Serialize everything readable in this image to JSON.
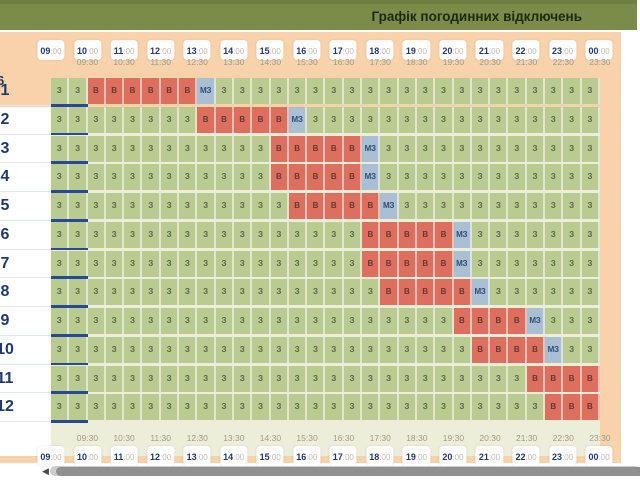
{
  "title": "Графік погодинних відключень",
  "header_fragment": "6",
  "now_badge": "···",
  "time_axis": {
    "hours": [
      "09:00",
      "10:00",
      "11:00",
      "12:00",
      "13:00",
      "14:00",
      "15:00",
      "16:00",
      "17:00",
      "18:00",
      "19:00",
      "20:00",
      "21:00",
      "22:00",
      "23:00",
      "00:00"
    ],
    "half_hours": [
      "09:30",
      "10:30",
      "11:30",
      "12:30",
      "13:30",
      "14:30",
      "15:30",
      "16:30",
      "17:30",
      "18:30",
      "19:30",
      "20:30",
      "21:30",
      "22:30",
      "23:30"
    ]
  },
  "symbols": {
    "Z": "З",
    "V": "В",
    "M": "МЗ"
  },
  "queues": [
    {
      "label": "1",
      "cells": "ZZVVVVVVMZZZZZZZZZZZZZZZZZZZZZ"
    },
    {
      "label": "2",
      "cells": "ZZZZZZZZVVVVVMZZZZZZZZZZZZZZZZ"
    },
    {
      "label": "3",
      "cells": "ZZZZZZZZZZZZVVVVVMZZZZZZZZZZZZ"
    },
    {
      "label": "4",
      "cells": "ZZZZZZZZZZZZVVVVVMZZZZZZZZZZZZ"
    },
    {
      "label": "5",
      "cells": "ZZZZZZZZZZZZZVVVVVMZZZZZZZZZZZ"
    },
    {
      "label": "6",
      "cells": "ZZZZZZZZZZZZZZZZZVVVVVMZZZZZZZ"
    },
    {
      "label": "7",
      "cells": "ZZZZZZZZZZZZZZZZZVVVVVMZZZZZZZ"
    },
    {
      "label": "8",
      "cells": "ZZZZZZZZZZZZZZZZZZVVVVVMZZZZZZ"
    },
    {
      "label": "9",
      "cells": "ZZZZZZZZZZZZZZZZZZZZZZVVVVMZZZ"
    },
    {
      "label": "10",
      "cells": "ZZZZZZZZZZZZZZZZZZZZZZZVVVVMZZ"
    },
    {
      "label": "11",
      "cells": "ZZZZZZZZZZZZZZZZZZZZZZZZZZVVVV"
    },
    {
      "label": "12",
      "cells": "ZZZZZZZZZZZZZZZZZZZZZZZZZZZVVV"
    }
  ],
  "scrollbar": {
    "arrow_left": "◀"
  },
  "colors": {
    "header_bar": "#7b8b4a",
    "surface": "#f8d2ab",
    "cell_on": "#b9cb90",
    "cell_off": "#dc6f5e",
    "cell_maybe": "#abbfd3",
    "accent_navy": "#21386b",
    "badge_blue": "#1d3f96"
  }
}
